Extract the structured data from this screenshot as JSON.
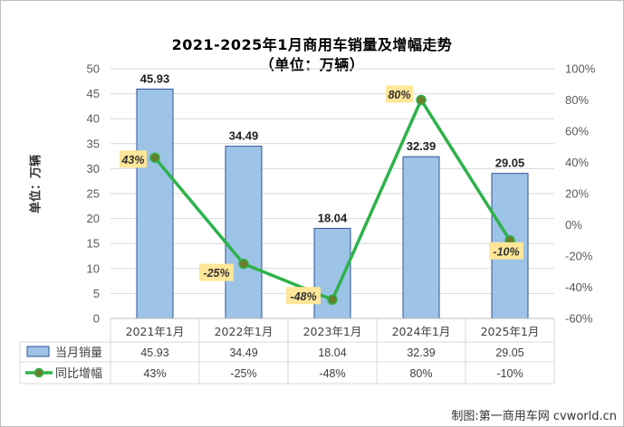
{
  "source_text": "制图:第一商用车网 cvworld.cn",
  "chart_data": {
    "type": "bar",
    "title": "2021-2025年1月商用车销量及增幅走势",
    "subtitle": "（单位：万辆）",
    "ylabel": "单位：万辆",
    "categories": [
      "2021年1月",
      "2022年1月",
      "2023年1月",
      "2024年1月",
      "2025年1月"
    ],
    "ylim": [
      0,
      50
    ],
    "yticks": [
      0,
      5,
      10,
      15,
      20,
      25,
      30,
      35,
      40,
      45,
      50
    ],
    "y2lim": [
      -60,
      100
    ],
    "y2ticks": [
      "-60%",
      "-40%",
      "-20%",
      "0%",
      "20%",
      "40%",
      "60%",
      "80%",
      "100%"
    ],
    "series": [
      {
        "name": "当月销量",
        "type": "bar",
        "axis": "left",
        "values": [
          45.93,
          34.49,
          18.04,
          32.39,
          29.05
        ],
        "labels": [
          "45.93",
          "34.49",
          "18.04",
          "32.39",
          "29.05"
        ],
        "color": "#9dc3e6",
        "border": "#2f5597"
      },
      {
        "name": "同比增幅",
        "type": "line",
        "axis": "right",
        "values": [
          43,
          -25,
          -48,
          80,
          -10
        ],
        "labels": [
          "43%",
          "-25%",
          "-48%",
          "80%",
          "-10%"
        ],
        "color": "#2db34a",
        "marker_color": "#6b7d2a",
        "label_bg": "#ffe699"
      }
    ],
    "grid": true,
    "legend": "data-table-bottom"
  }
}
